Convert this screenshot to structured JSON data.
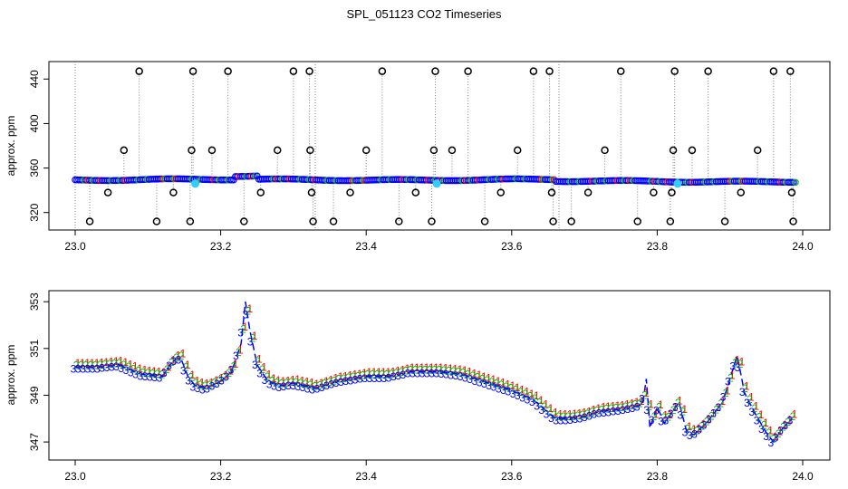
{
  "title": "SPL_051123  CO2 Timeseries",
  "colors": {
    "axis": "#000000",
    "series_1": "#ff0000",
    "series_2": "#00bb00",
    "series_3": "#0000ff",
    "marker_black": "#000000",
    "marker_cyan": "#33ccff",
    "dotted_line": "#808080"
  },
  "chart_data": [
    {
      "type": "scatter",
      "ylabel": "approx. ppm",
      "xlabel": "",
      "xlim": [
        23.0,
        24.0
      ],
      "ylim": [
        310,
        450
      ],
      "x_ticks": [
        "23.0",
        "23.2",
        "23.4",
        "23.6",
        "23.8",
        "24.0"
      ],
      "y_ticks": [
        "320",
        "360",
        "400",
        "440"
      ],
      "grid": false,
      "series_description": "dense baseline near 349-352 ppm with black circle outliers at 312, 338, 376 and 447 ppm",
      "outliers": [
        {
          "x": 23.02,
          "y": 312
        },
        {
          "x": 23.045,
          "y": 338
        },
        {
          "x": 23.067,
          "y": 376
        },
        {
          "x": 23.088,
          "y": 447
        },
        {
          "x": 23.112,
          "y": 312
        },
        {
          "x": 23.135,
          "y": 338
        },
        {
          "x": 23.158,
          "y": 312
        },
        {
          "x": 23.16,
          "y": 376
        },
        {
          "x": 23.162,
          "y": 447
        },
        {
          "x": 23.188,
          "y": 376
        },
        {
          "x": 23.21,
          "y": 447
        },
        {
          "x": 23.232,
          "y": 312
        },
        {
          "x": 23.255,
          "y": 338
        },
        {
          "x": 23.278,
          "y": 376
        },
        {
          "x": 23.3,
          "y": 447
        },
        {
          "x": 23.322,
          "y": 447
        },
        {
          "x": 23.323,
          "y": 376
        },
        {
          "x": 23.325,
          "y": 338
        },
        {
          "x": 23.327,
          "y": 312
        },
        {
          "x": 23.355,
          "y": 312
        },
        {
          "x": 23.378,
          "y": 338
        },
        {
          "x": 23.4,
          "y": 376
        },
        {
          "x": 23.422,
          "y": 447
        },
        {
          "x": 23.445,
          "y": 312
        },
        {
          "x": 23.468,
          "y": 338
        },
        {
          "x": 23.49,
          "y": 312
        },
        {
          "x": 23.493,
          "y": 376
        },
        {
          "x": 23.495,
          "y": 447
        },
        {
          "x": 23.518,
          "y": 376
        },
        {
          "x": 23.54,
          "y": 447
        },
        {
          "x": 23.563,
          "y": 312
        },
        {
          "x": 23.585,
          "y": 338
        },
        {
          "x": 23.608,
          "y": 376
        },
        {
          "x": 23.63,
          "y": 447
        },
        {
          "x": 23.652,
          "y": 447
        },
        {
          "x": 23.655,
          "y": 338
        },
        {
          "x": 23.657,
          "y": 312
        },
        {
          "x": 23.682,
          "y": 312
        },
        {
          "x": 23.705,
          "y": 338
        },
        {
          "x": 23.728,
          "y": 376
        },
        {
          "x": 23.75,
          "y": 447
        },
        {
          "x": 23.773,
          "y": 312
        },
        {
          "x": 23.795,
          "y": 338
        },
        {
          "x": 23.818,
          "y": 312
        },
        {
          "x": 23.82,
          "y": 338
        },
        {
          "x": 23.822,
          "y": 376
        },
        {
          "x": 23.824,
          "y": 447
        },
        {
          "x": 23.848,
          "y": 376
        },
        {
          "x": 23.87,
          "y": 447
        },
        {
          "x": 23.893,
          "y": 312
        },
        {
          "x": 23.915,
          "y": 338
        },
        {
          "x": 23.938,
          "y": 376
        },
        {
          "x": 23.96,
          "y": 447
        },
        {
          "x": 23.983,
          "y": 447
        },
        {
          "x": 23.985,
          "y": 338
        },
        {
          "x": 23.987,
          "y": 312
        }
      ],
      "highlights": [
        {
          "x": 23.165,
          "y": 346
        },
        {
          "x": 23.497,
          "y": 346
        },
        {
          "x": 23.828,
          "y": 346
        }
      ]
    },
    {
      "type": "line",
      "ylabel": "approx. ppm",
      "xlabel": "",
      "xlim": [
        23.0,
        24.0
      ],
      "ylim": [
        346.5,
        353.2
      ],
      "x_ticks": [
        "23.0",
        "23.2",
        "23.4",
        "23.6",
        "23.8",
        "24.0"
      ],
      "y_ticks": [
        "347",
        "349",
        "351",
        "353"
      ],
      "grid": false,
      "marker_labels": [
        "1",
        "2",
        "3"
      ],
      "series": [
        {
          "x": [
            23.0,
            23.03,
            23.06,
            23.09,
            23.12,
            23.135,
            23.145,
            23.155,
            23.165,
            23.18,
            23.2,
            23.215,
            23.228,
            23.234,
            23.24,
            23.25,
            23.265,
            23.28,
            23.3,
            23.33,
            23.36,
            23.4,
            23.43,
            23.46,
            23.5,
            23.53,
            23.56,
            23.6,
            23.63,
            23.66,
            23.68,
            23.7,
            23.72,
            23.75,
            23.78,
            23.785,
            23.79,
            23.8,
            23.81,
            23.83,
            23.84,
            23.85,
            23.87,
            23.89,
            23.9,
            23.91,
            23.92,
            23.935,
            23.95,
            23.96,
            23.97,
            23.985
          ],
          "values": [
            350.2,
            350.2,
            350.3,
            349.9,
            349.8,
            350.5,
            350.6,
            349.8,
            349.4,
            349.3,
            349.6,
            350.0,
            351.2,
            353.0,
            351.8,
            350.3,
            349.6,
            349.4,
            349.5,
            349.3,
            349.6,
            349.8,
            349.8,
            350.0,
            350.0,
            349.9,
            349.6,
            349.2,
            348.8,
            348.0,
            348.0,
            348.1,
            348.3,
            348.4,
            348.6,
            349.7,
            347.6,
            348.5,
            347.8,
            348.7,
            347.5,
            347.3,
            347.9,
            348.7,
            349.7,
            350.7,
            349.1,
            348.2,
            347.4,
            347.0,
            347.5,
            348.0
          ]
        }
      ]
    }
  ]
}
